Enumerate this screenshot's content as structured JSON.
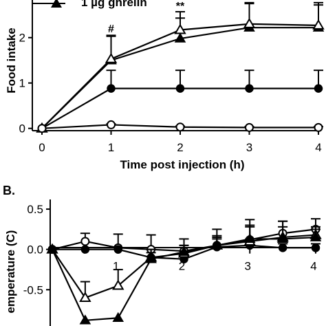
{
  "chart_data": [
    {
      "panel": "A",
      "type": "line",
      "xlabel": "Time post injection (h)",
      "ylabel": "Food intake",
      "x": [
        0,
        1,
        2,
        3,
        4
      ],
      "xticks": [
        0,
        1,
        2,
        3,
        4
      ],
      "yticks": [
        0,
        1,
        2
      ],
      "xlim": [
        -0.1,
        4.1
      ],
      "ylim": [
        -0.05,
        2.95
      ],
      "legend": {
        "visible_entry": "1 µg ghrelin"
      },
      "annotations": [
        {
          "text": "#",
          "x": 1,
          "y": 2.12
        },
        {
          "text": "**",
          "x": 2,
          "y": 2.62
        }
      ],
      "series": [
        {
          "name": "1 µg ghrelin",
          "marker": "filled-triangle",
          "values": [
            0,
            1.5,
            1.98,
            2.22,
            2.22
          ],
          "errors": [
            0,
            0.55,
            0.45,
            0.55,
            0.55
          ]
        },
        {
          "marker": "open-triangle",
          "values": [
            0,
            1.53,
            2.17,
            2.3,
            2.27
          ],
          "errors": [
            0,
            0.5,
            0.4,
            0.45,
            0.45
          ]
        },
        {
          "marker": "filled-circle",
          "values": [
            0,
            0.88,
            0.88,
            0.88,
            0.88
          ],
          "errors": [
            0,
            0.4,
            0.4,
            0.4,
            0.4
          ]
        },
        {
          "marker": "open-circle",
          "values": [
            0,
            0.08,
            0.03,
            0.02,
            0.02
          ],
          "errors": [
            0,
            0.02,
            0.02,
            0.02,
            0.02
          ]
        }
      ]
    },
    {
      "panel": "B",
      "panel_label": "B.",
      "type": "line",
      "ylabel": "emperature (C)",
      "x": [
        0,
        0.5,
        1,
        1.5,
        2,
        2.5,
        3,
        3.5,
        4
      ],
      "xticks": [
        1,
        2,
        3,
        4
      ],
      "yticks": [
        "0.5",
        "0.0",
        "-0.5"
      ],
      "ytick_values": [
        0.5,
        0,
        -0.5
      ],
      "xlim": [
        -0.05,
        4.1
      ],
      "ylim": [
        -0.95,
        0.62
      ],
      "series": [
        {
          "marker": "open-circle",
          "values": [
            0,
            0.1,
            0.02,
            0,
            -0.02,
            0.05,
            0.12,
            0.2,
            0.25
          ],
          "errors": [
            0,
            0.1,
            0.17,
            0.18,
            0.15,
            0.2,
            0.25,
            0.15,
            0.13
          ]
        },
        {
          "marker": "filled-circle",
          "values": [
            0,
            0,
            0,
            -0.1,
            -0.12,
            0.03,
            0.05,
            0.02,
            0.02
          ],
          "errors": [
            0,
            0,
            0,
            0.1,
            0.1,
            0.1,
            0.08,
            0.05,
            0.05
          ]
        },
        {
          "marker": "open-triangle",
          "values": [
            0,
            -0.6,
            -0.45,
            -0.1,
            -0.05,
            0.05,
            0.1,
            0.15,
            0.18
          ],
          "errors": [
            0,
            0.2,
            0.2,
            0.1,
            0.1,
            0.1,
            0.2,
            0.2,
            0.1
          ]
        },
        {
          "marker": "filled-triangle",
          "values": [
            0,
            -0.88,
            -0.85,
            -0.12,
            -0.03,
            0.05,
            0.13,
            0.13,
            0.15
          ],
          "errors": [
            0,
            0,
            0,
            0.08,
            0.08,
            0.12,
            0.15,
            0.15,
            0.1
          ]
        }
      ]
    }
  ]
}
